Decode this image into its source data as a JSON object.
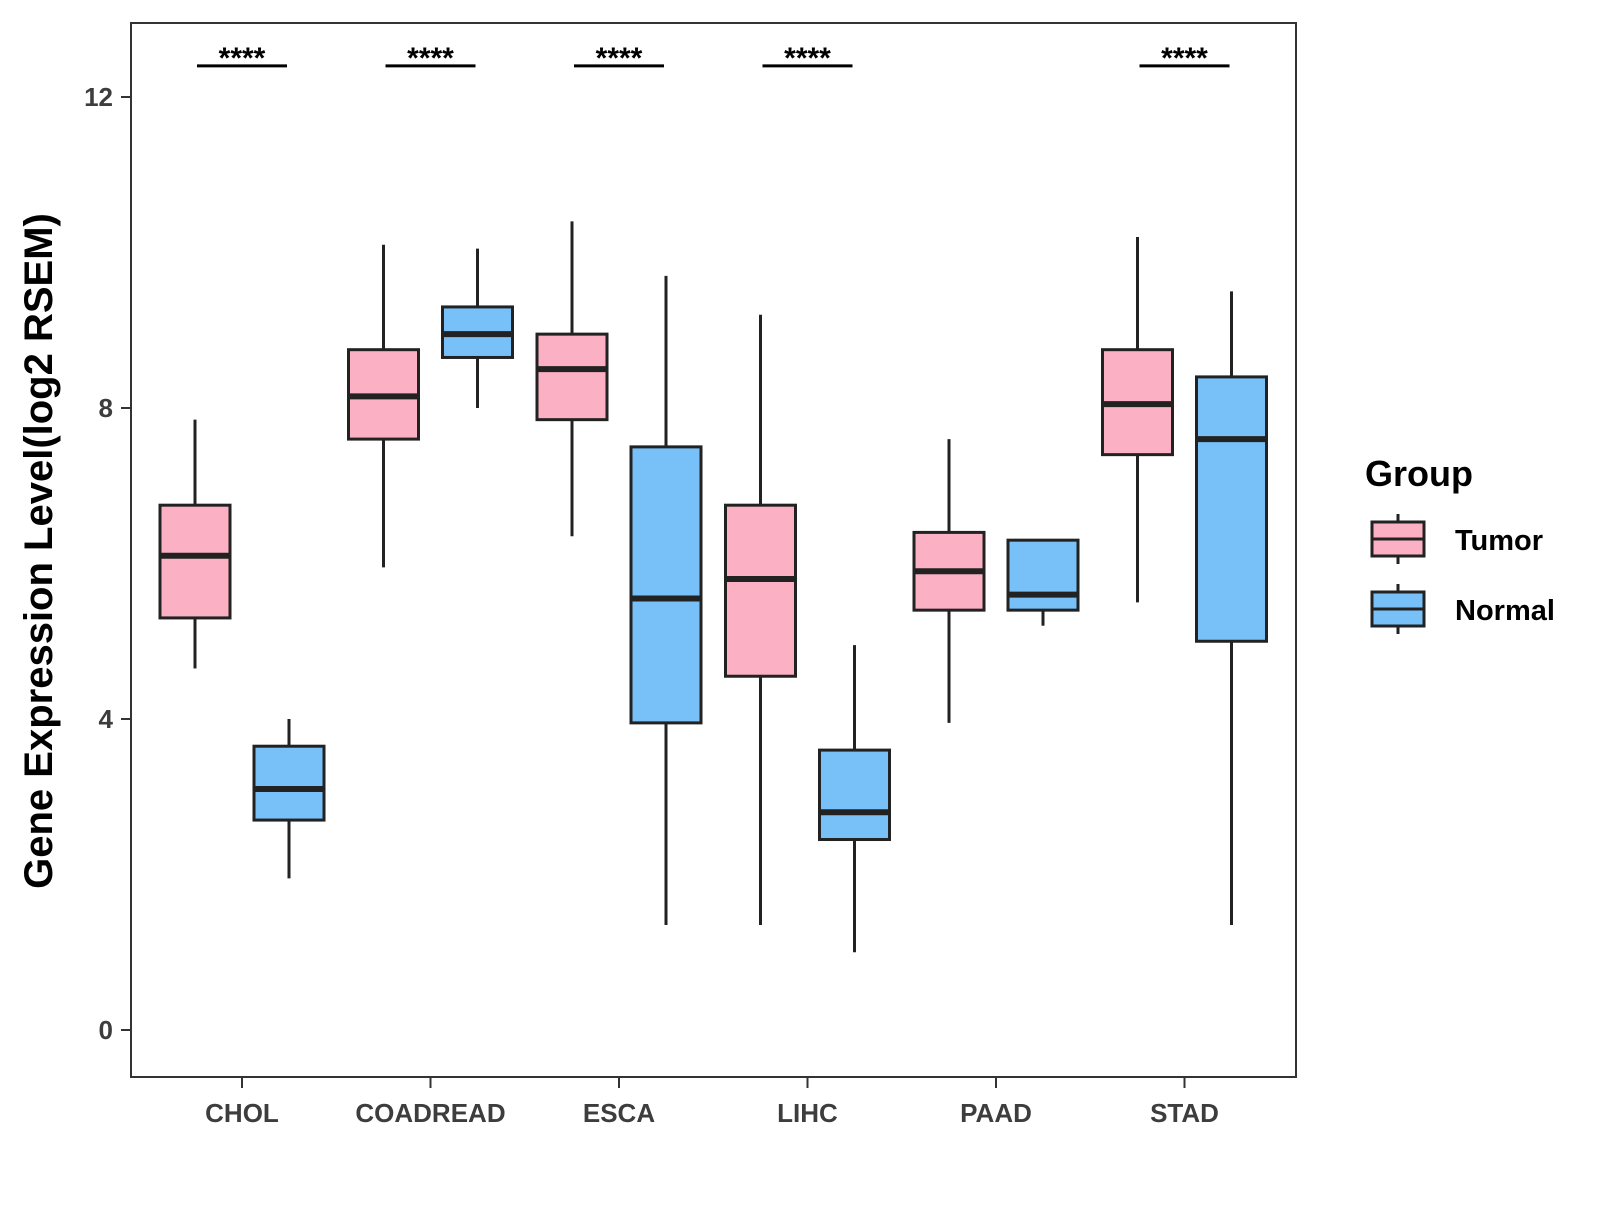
{
  "chart_data": {
    "type": "boxplot",
    "title": "",
    "xlabel": "",
    "ylabel": "Gene Expression Level(log2 RSEM)",
    "ylim": [
      -0.6,
      13
    ],
    "y_ticks": [
      0,
      4,
      8,
      12
    ],
    "y_tick_labels": [
      "0",
      "4",
      "8",
      "12"
    ],
    "grid": false,
    "categories": [
      "CHOL",
      "COADREAD",
      "ESCA",
      "LIHC",
      "PAAD",
      "STAD"
    ],
    "legend": {
      "title": "Group",
      "position": "right",
      "entries": [
        "Tumor",
        "Normal"
      ]
    },
    "colors": {
      "Tumor": "#FBB1C3",
      "Normal": "#77C1F8",
      "stroke": "#222222"
    },
    "series": [
      {
        "name": "Tumor",
        "boxes": [
          {
            "min": 4.65,
            "q1": 5.3,
            "median": 6.1,
            "q3": 6.75,
            "max": 7.85
          },
          {
            "min": 5.95,
            "q1": 7.6,
            "median": 8.15,
            "q3": 8.75,
            "max": 10.1
          },
          {
            "min": 6.35,
            "q1": 7.85,
            "median": 8.5,
            "q3": 8.95,
            "max": 10.4
          },
          {
            "min": 1.35,
            "q1": 4.55,
            "median": 5.8,
            "q3": 6.75,
            "max": 9.2
          },
          {
            "min": 3.95,
            "q1": 5.4,
            "median": 5.9,
            "q3": 6.4,
            "max": 7.6
          },
          {
            "min": 5.5,
            "q1": 7.4,
            "median": 8.05,
            "q3": 8.75,
            "max": 10.2
          }
        ]
      },
      {
        "name": "Normal",
        "boxes": [
          {
            "min": 1.95,
            "q1": 2.7,
            "median": 3.1,
            "q3": 3.65,
            "max": 4.0
          },
          {
            "min": 8.0,
            "q1": 8.65,
            "median": 8.95,
            "q3": 9.3,
            "max": 10.05
          },
          {
            "min": 1.35,
            "q1": 3.95,
            "median": 5.55,
            "q3": 7.5,
            "max": 9.7
          },
          {
            "min": 1.0,
            "q1": 2.45,
            "median": 2.8,
            "q3": 3.6,
            "max": 4.95
          },
          {
            "min": 5.2,
            "q1": 5.4,
            "median": 5.6,
            "q3": 6.3,
            "max": 6.3
          },
          {
            "min": 1.35,
            "q1": 5.0,
            "median": 7.6,
            "q3": 8.4,
            "max": 9.5
          }
        ]
      }
    ],
    "significance": [
      {
        "category": "CHOL",
        "label": "****"
      },
      {
        "category": "COADREAD",
        "label": "****"
      },
      {
        "category": "ESCA",
        "label": "****"
      },
      {
        "category": "LIHC",
        "label": "****"
      },
      {
        "category": "PAAD",
        "label": ""
      },
      {
        "category": "STAD",
        "label": "****"
      }
    ],
    "significance_y": 12.4
  }
}
